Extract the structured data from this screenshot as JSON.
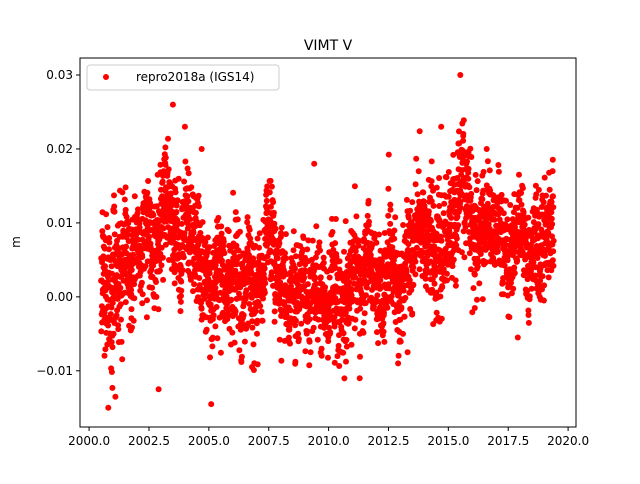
{
  "chart_data": {
    "type": "scatter",
    "title": "VIMT V",
    "xlabel": "",
    "ylabel": "m",
    "xlim": [
      1999.62,
      2020.33
    ],
    "ylim": [
      -0.0176,
      0.0323
    ],
    "xticks": [
      2000.0,
      2002.5,
      2005.0,
      2007.5,
      2010.0,
      2012.5,
      2015.0,
      2017.5,
      2020.0
    ],
    "xtick_labels": [
      "2000.0",
      "2002.5",
      "2005.0",
      "2007.5",
      "2010.0",
      "2012.5",
      "2015.0",
      "2017.5",
      "2020.0"
    ],
    "yticks": [
      -0.01,
      0.0,
      0.01,
      0.02,
      0.03
    ],
    "ytick_labels": [
      "−0.01",
      "0.00",
      "0.01",
      "0.02",
      "0.03"
    ],
    "grid": false,
    "legend": {
      "placement": "top-left",
      "entries": [
        "repro2018a (IGS14)"
      ]
    },
    "series": [
      {
        "name": "repro2018a (IGS14)",
        "color": "#ff0000",
        "x_range": [
          2000.5,
          2019.4
        ],
        "sampling_interval_years": 0.0055,
        "trend": [
          [
            2000.5,
            0.003,
            0.006
          ],
          [
            2001.0,
            0.002,
            0.006
          ],
          [
            2001.5,
            0.004,
            0.0045
          ],
          [
            2002.0,
            0.006,
            0.0042
          ],
          [
            2002.5,
            0.007,
            0.0042
          ],
          [
            2003.0,
            0.01,
            0.004
          ],
          [
            2003.5,
            0.012,
            0.0042
          ],
          [
            2004.0,
            0.01,
            0.0042
          ],
          [
            2004.5,
            0.006,
            0.004
          ],
          [
            2005.0,
            0.002,
            0.0042
          ],
          [
            2006.0,
            0.003,
            0.004
          ],
          [
            2007.0,
            0.004,
            0.004
          ],
          [
            2008.0,
            0.003,
            0.004
          ],
          [
            2009.0,
            0.004,
            0.004
          ],
          [
            2010.0,
            0.003,
            0.004
          ],
          [
            2011.0,
            0.003,
            0.004
          ],
          [
            2012.0,
            0.003,
            0.004
          ],
          [
            2013.0,
            0.004,
            0.004
          ],
          [
            2014.0,
            0.007,
            0.004
          ],
          [
            2015.0,
            0.009,
            0.0042
          ],
          [
            2015.7,
            0.014,
            0.0048
          ],
          [
            2016.3,
            0.01,
            0.0042
          ],
          [
            2017.0,
            0.008,
            0.004
          ],
          [
            2018.0,
            0.008,
            0.004
          ],
          [
            2019.4,
            0.006,
            0.004
          ]
        ],
        "extreme_points": [
          [
            2000.8,
            -0.015
          ],
          [
            2003.5,
            0.026
          ],
          [
            2015.5,
            0.03
          ],
          [
            2005.1,
            -0.0145
          ],
          [
            2001.1,
            -0.0135
          ],
          [
            2002.9,
            -0.0125
          ],
          [
            2011.3,
            -0.011
          ],
          [
            2009.4,
            0.018
          ],
          [
            2014.7,
            0.023
          ],
          [
            2004.0,
            0.023
          ],
          [
            2016.6,
            0.02
          ],
          [
            2004.7,
            0.02
          ],
          [
            2017.9,
            -0.0055
          ],
          [
            2013.3,
            -0.0075
          ],
          [
            2012.9,
            -0.009
          ]
        ]
      }
    ]
  }
}
